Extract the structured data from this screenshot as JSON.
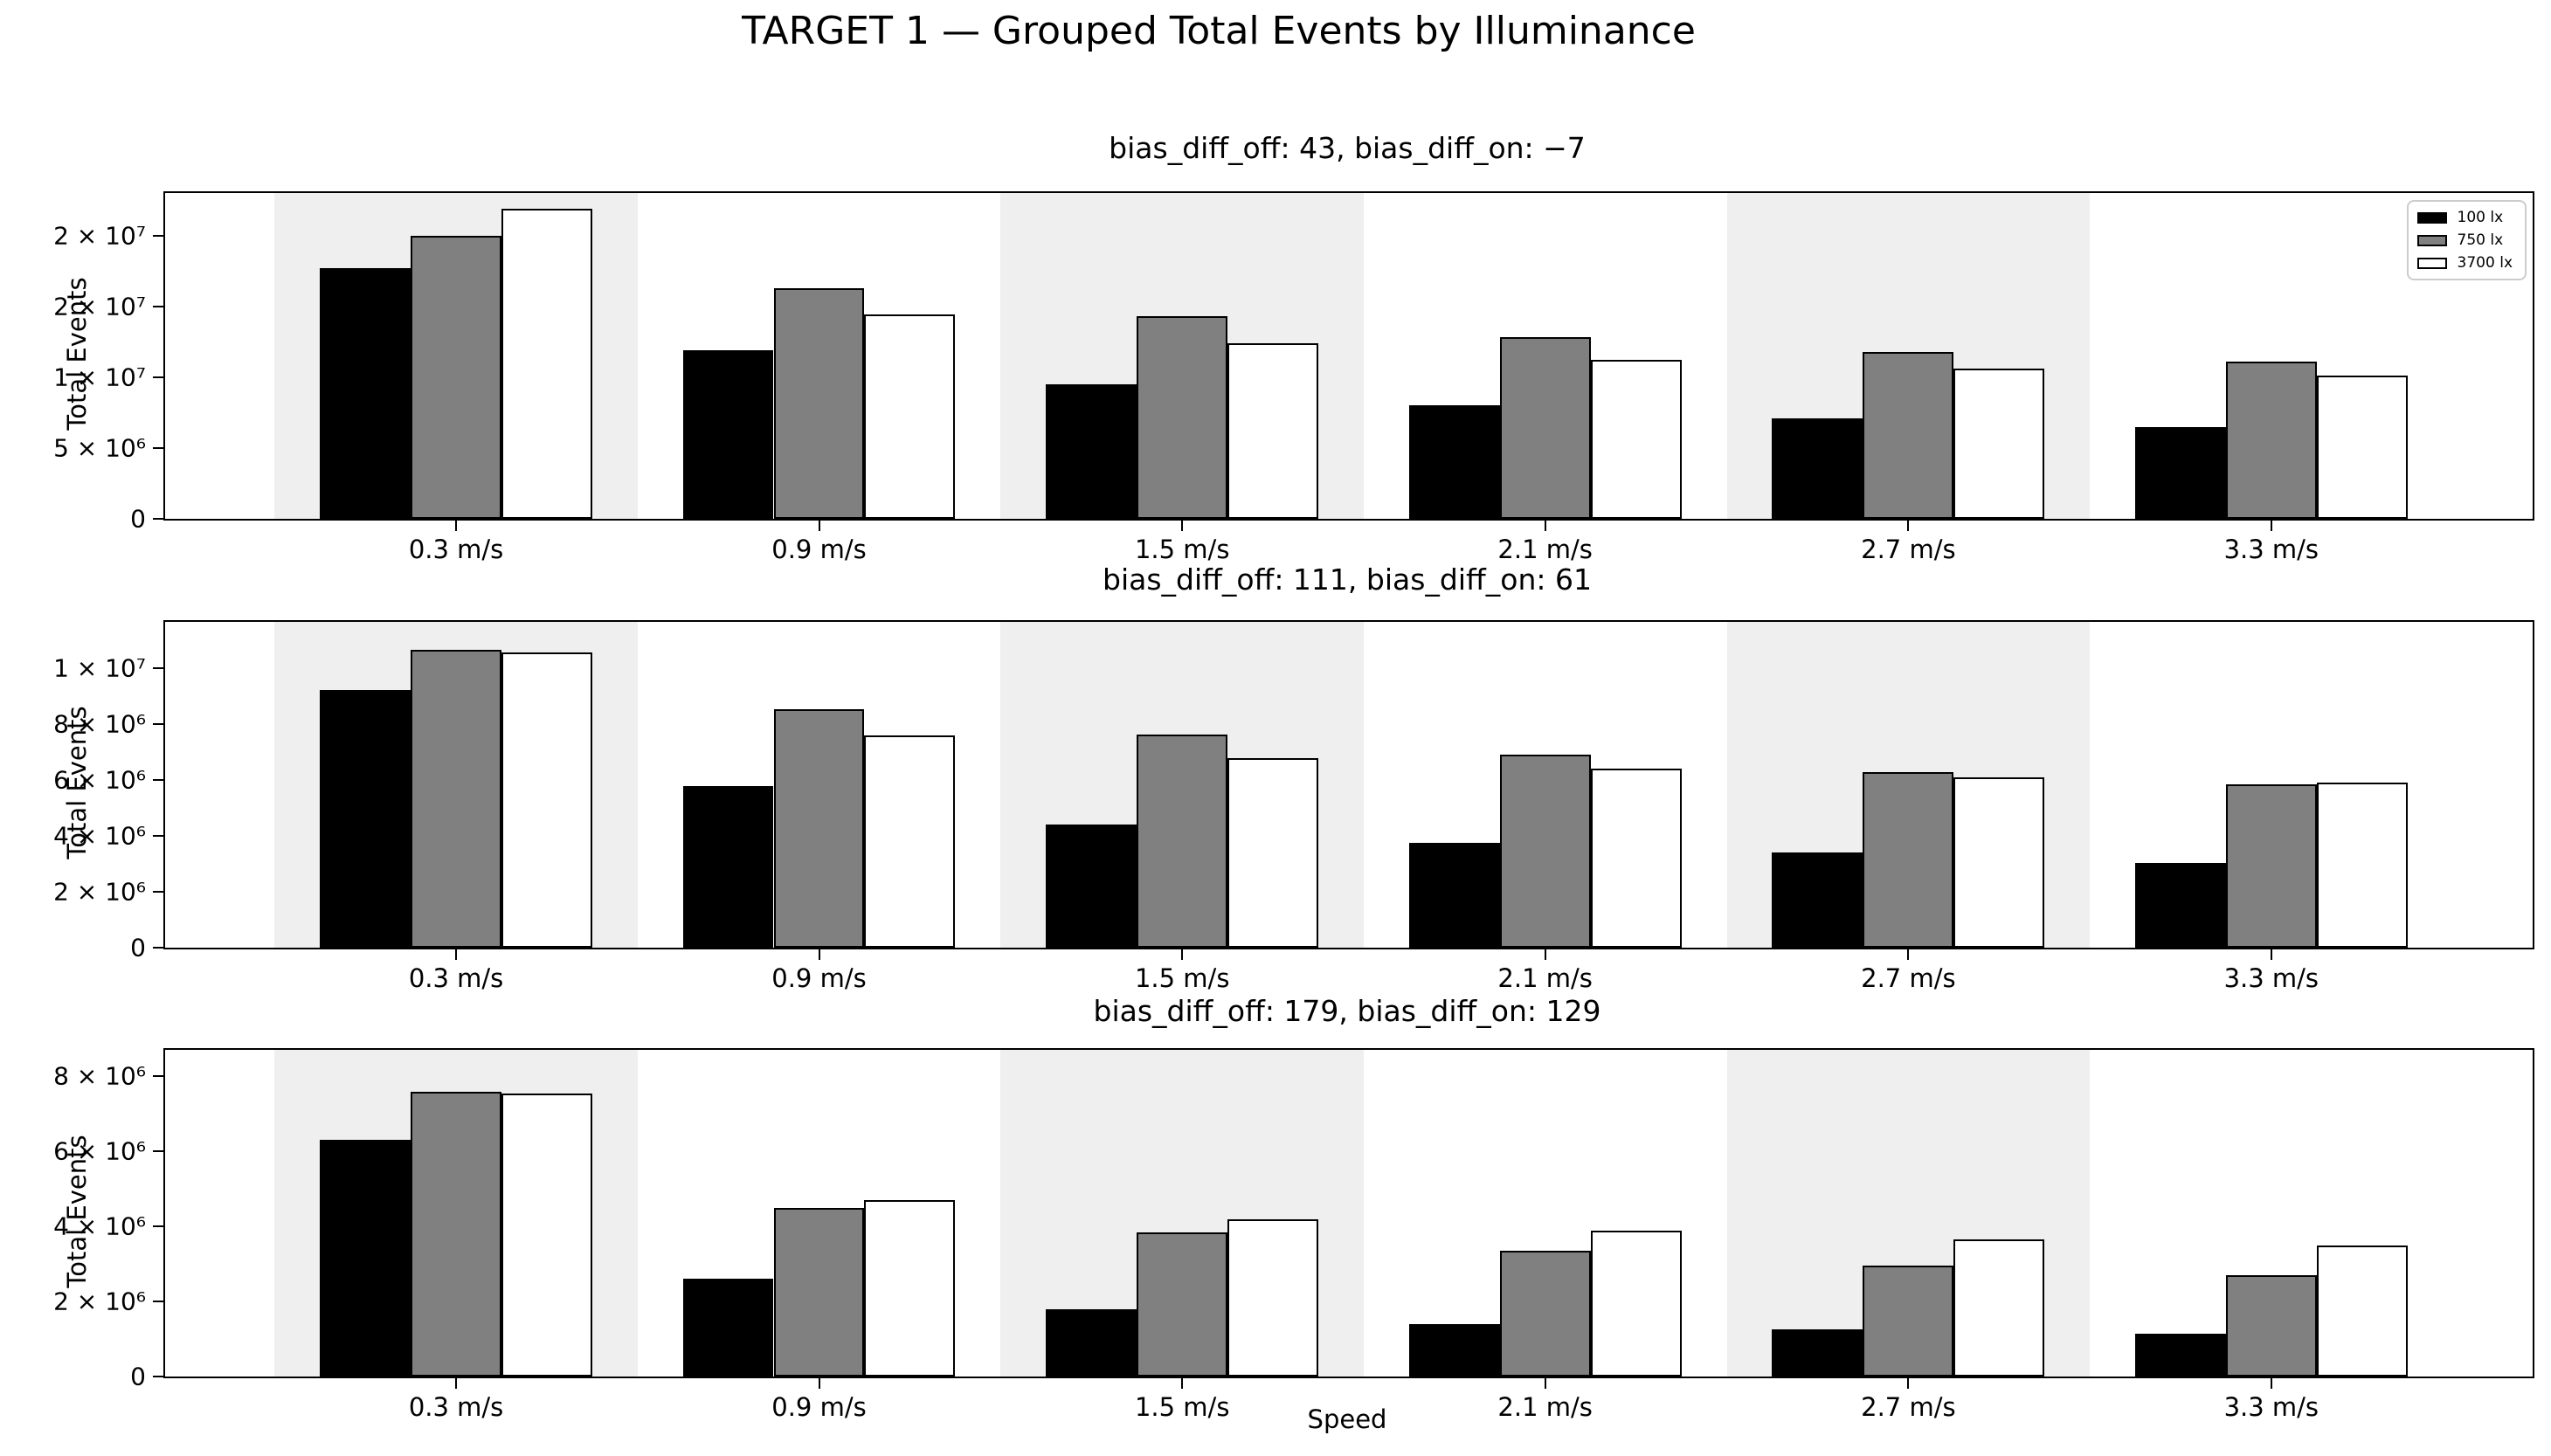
{
  "figure": {
    "suptitle": "TARGET 1 — Grouped Total Events by Illuminance",
    "xlabel": "Speed",
    "background": "#ffffff",
    "band_color": "#efefef",
    "bar_edge_color": "#000000"
  },
  "legend": {
    "items": [
      {
        "label": "100 lx",
        "color": "#000000"
      },
      {
        "label": "750 lx",
        "color": "#808080"
      },
      {
        "label": "3700 lx",
        "color": "#ffffff"
      }
    ]
  },
  "chart_data": [
    {
      "type": "bar",
      "title": "bias_diff_off: 43, bias_diff_on: −7",
      "ylabel": "Total Events",
      "categories": [
        "0.3 m/s",
        "0.9 m/s",
        "1.5 m/s",
        "2.1 m/s",
        "2.7 m/s",
        "3.3 m/s"
      ],
      "series": [
        {
          "name": "100 lx",
          "color": "#000000",
          "values": [
            17700000,
            11900000,
            9500000,
            8000000,
            7100000,
            6500000
          ]
        },
        {
          "name": "750 lx",
          "color": "#808080",
          "values": [
            20000000,
            16300000,
            14300000,
            12800000,
            11800000,
            11100000
          ]
        },
        {
          "name": "3700 lx",
          "color": "#ffffff",
          "values": [
            21900000,
            14400000,
            12400000,
            11200000,
            10600000,
            10100000
          ]
        }
      ],
      "ylim": [
        0,
        23000000
      ],
      "yticks": [
        {
          "value": 0,
          "label": "0"
        },
        {
          "value": 5000000,
          "label": "5 × 10⁶"
        },
        {
          "value": 10000000,
          "label": "1 × 10⁷"
        },
        {
          "value": 15000000,
          "label": "2 × 10⁷"
        },
        {
          "value": 20000000,
          "label": "2 × 10⁷"
        }
      ],
      "legend_position": "upper right",
      "grid": false
    },
    {
      "type": "bar",
      "title": "bias_diff_off: 111, bias_diff_on: 61",
      "ylabel": "Total Events",
      "categories": [
        "0.3 m/s",
        "0.9 m/s",
        "1.5 m/s",
        "2.1 m/s",
        "2.7 m/s",
        "3.3 m/s"
      ],
      "series": [
        {
          "name": "100 lx",
          "color": "#000000",
          "values": [
            9240000,
            5800000,
            4400000,
            3750000,
            3400000,
            3050000
          ]
        },
        {
          "name": "750 lx",
          "color": "#808080",
          "values": [
            10660000,
            8550000,
            7650000,
            6900000,
            6300000,
            5850000
          ]
        },
        {
          "name": "3700 lx",
          "color": "#ffffff",
          "values": [
            10570000,
            7600000,
            6800000,
            6400000,
            6100000,
            5900000
          ]
        }
      ],
      "ylim": [
        0,
        11670000
      ],
      "yticks": [
        {
          "value": 0,
          "label": "0"
        },
        {
          "value": 2000000,
          "label": "2 × 10⁶"
        },
        {
          "value": 4000000,
          "label": "4 × 10⁶"
        },
        {
          "value": 6000000,
          "label": "6 × 10⁶"
        },
        {
          "value": 8000000,
          "label": "8 × 10⁶"
        },
        {
          "value": 10000000,
          "label": "1 × 10⁷"
        }
      ],
      "grid": false
    },
    {
      "type": "bar",
      "title": "bias_diff_off: 179, bias_diff_on: 129",
      "ylabel": "Total Events",
      "categories": [
        "0.3 m/s",
        "0.9 m/s",
        "1.5 m/s",
        "2.1 m/s",
        "2.7 m/s",
        "3.3 m/s"
      ],
      "series": [
        {
          "name": "100 lx",
          "color": "#000000",
          "values": [
            6300000,
            2600000,
            1800000,
            1400000,
            1250000,
            1150000
          ]
        },
        {
          "name": "750 lx",
          "color": "#808080",
          "values": [
            7600000,
            4500000,
            3850000,
            3350000,
            2950000,
            2700000
          ]
        },
        {
          "name": "3700 lx",
          "color": "#ffffff",
          "values": [
            7550000,
            4700000,
            4200000,
            3900000,
            3650000,
            3500000
          ]
        }
      ],
      "ylim": [
        0,
        8710000
      ],
      "yticks": [
        {
          "value": 0,
          "label": "0"
        },
        {
          "value": 2000000,
          "label": "2 × 10⁶"
        },
        {
          "value": 4000000,
          "label": "4 × 10⁶"
        },
        {
          "value": 6000000,
          "label": "6 × 10⁶"
        },
        {
          "value": 8000000,
          "label": "8 × 10⁶"
        }
      ],
      "grid": false
    }
  ]
}
